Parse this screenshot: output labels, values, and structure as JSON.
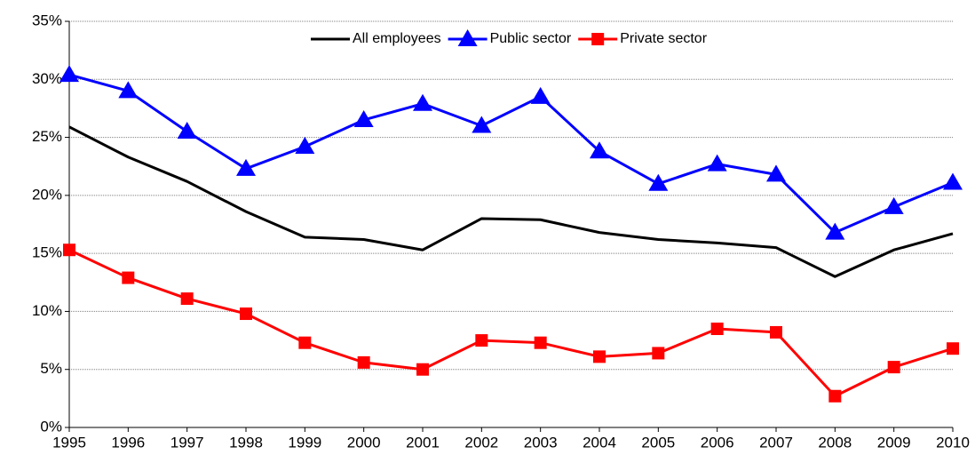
{
  "chart_data": {
    "type": "line",
    "categories": [
      "1995",
      "1996",
      "1997",
      "1998",
      "1999",
      "2000",
      "2001",
      "2002",
      "2003",
      "2004",
      "2005",
      "2006",
      "2007",
      "2008",
      "2009",
      "2010"
    ],
    "series": [
      {
        "name": "All employees",
        "color": "#000000",
        "marker": "none",
        "values": [
          25.9,
          23.3,
          21.2,
          18.6,
          16.4,
          16.2,
          15.3,
          18.0,
          17.9,
          16.8,
          16.2,
          15.9,
          15.5,
          13.0,
          15.3,
          16.7
        ]
      },
      {
        "name": "Public sector",
        "color": "#0000ff",
        "marker": "triangle",
        "values": [
          30.4,
          29.0,
          25.5,
          22.3,
          24.2,
          26.5,
          27.9,
          26.0,
          28.5,
          23.8,
          21.0,
          22.7,
          21.8,
          16.8,
          19.0,
          21.1
        ]
      },
      {
        "name": "Private sector",
        "color": "#ff0000",
        "marker": "square",
        "values": [
          15.3,
          12.9,
          11.1,
          9.8,
          7.3,
          5.6,
          5.0,
          7.5,
          7.3,
          6.1,
          6.4,
          8.5,
          8.2,
          2.7,
          5.2,
          6.8
        ]
      }
    ],
    "ylim": [
      0,
      35
    ],
    "yticks": [
      {
        "value": 0,
        "label": "0%"
      },
      {
        "value": 5,
        "label": "5%"
      },
      {
        "value": 10,
        "label": "10%"
      },
      {
        "value": 15,
        "label": "15%"
      },
      {
        "value": 20,
        "label": "20%"
      },
      {
        "value": 25,
        "label": "25%"
      },
      {
        "value": 30,
        "label": "30%"
      },
      {
        "value": 35,
        "label": "35%"
      }
    ],
    "grid": true,
    "legend": "top"
  }
}
